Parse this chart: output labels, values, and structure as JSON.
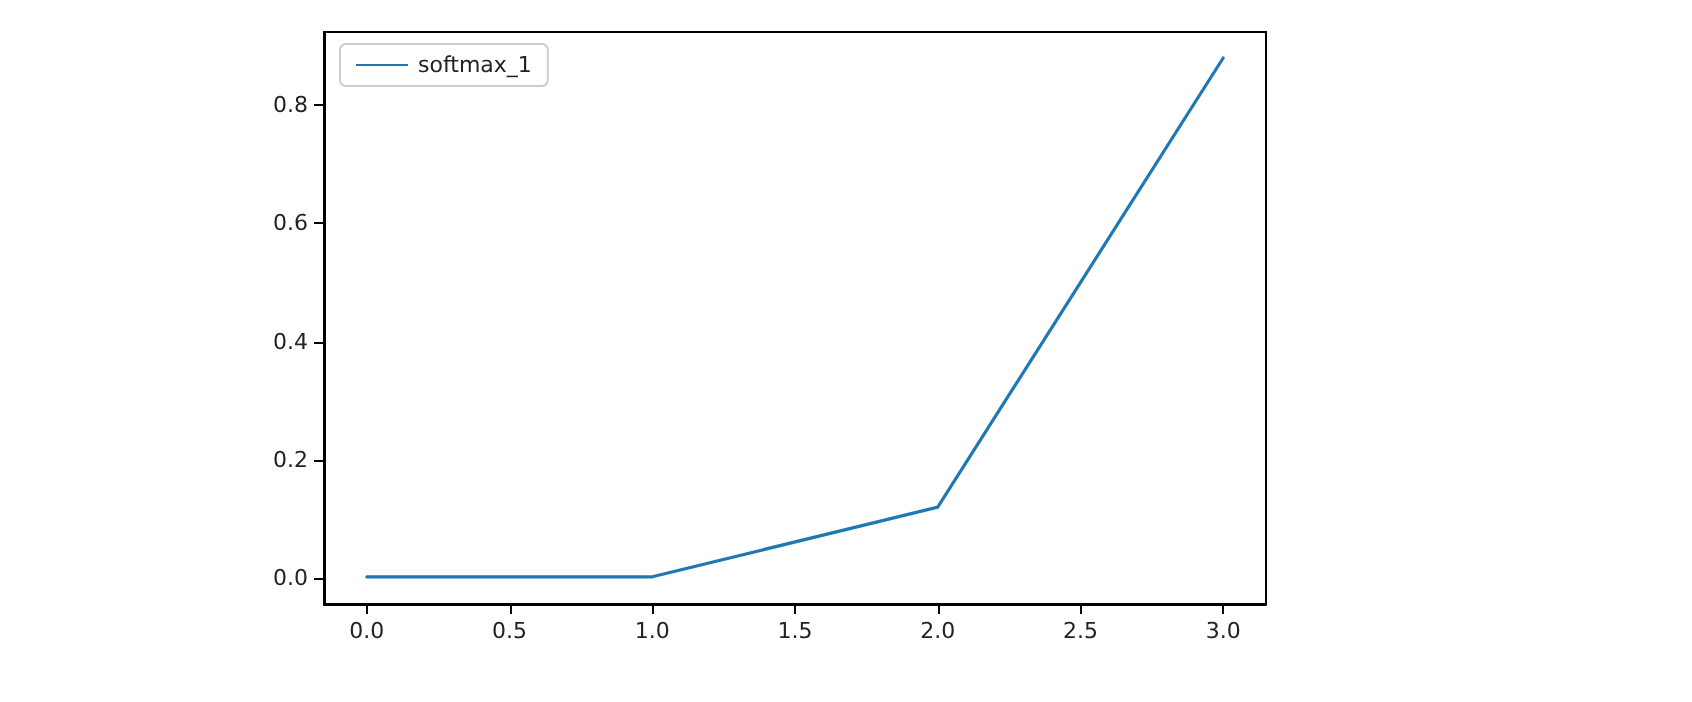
{
  "chart_data": {
    "type": "line",
    "x": [
      0,
      1,
      2,
      3
    ],
    "series": [
      {
        "name": "softmax_1",
        "color": "#1f77b4",
        "values": [
          0.002,
          0.002,
          0.12,
          0.88
        ]
      }
    ],
    "xlim": [
      -0.15,
      3.15
    ],
    "xticks": [
      {
        "value": 0,
        "label": "0.0"
      },
      {
        "value": 0.5,
        "label": "0.5"
      },
      {
        "value": 1,
        "label": "1.0"
      },
      {
        "value": 1.5,
        "label": "1.5"
      },
      {
        "value": 2,
        "label": "2.0"
      },
      {
        "value": 2.5,
        "label": "2.5"
      },
      {
        "value": 3,
        "label": "3.0"
      }
    ],
    "ylim": [
      -0.044,
      0.924
    ],
    "yticks": [
      {
        "value": 0,
        "label": "0.0"
      },
      {
        "value": 0.2,
        "label": "0.2"
      },
      {
        "value": 0.4,
        "label": "0.4"
      },
      {
        "value": 0.6,
        "label": "0.6"
      },
      {
        "value": 0.8,
        "label": "0.8"
      }
    ],
    "grid": false,
    "legend": "top left",
    "marker": "none",
    "line_style": "solid"
  }
}
